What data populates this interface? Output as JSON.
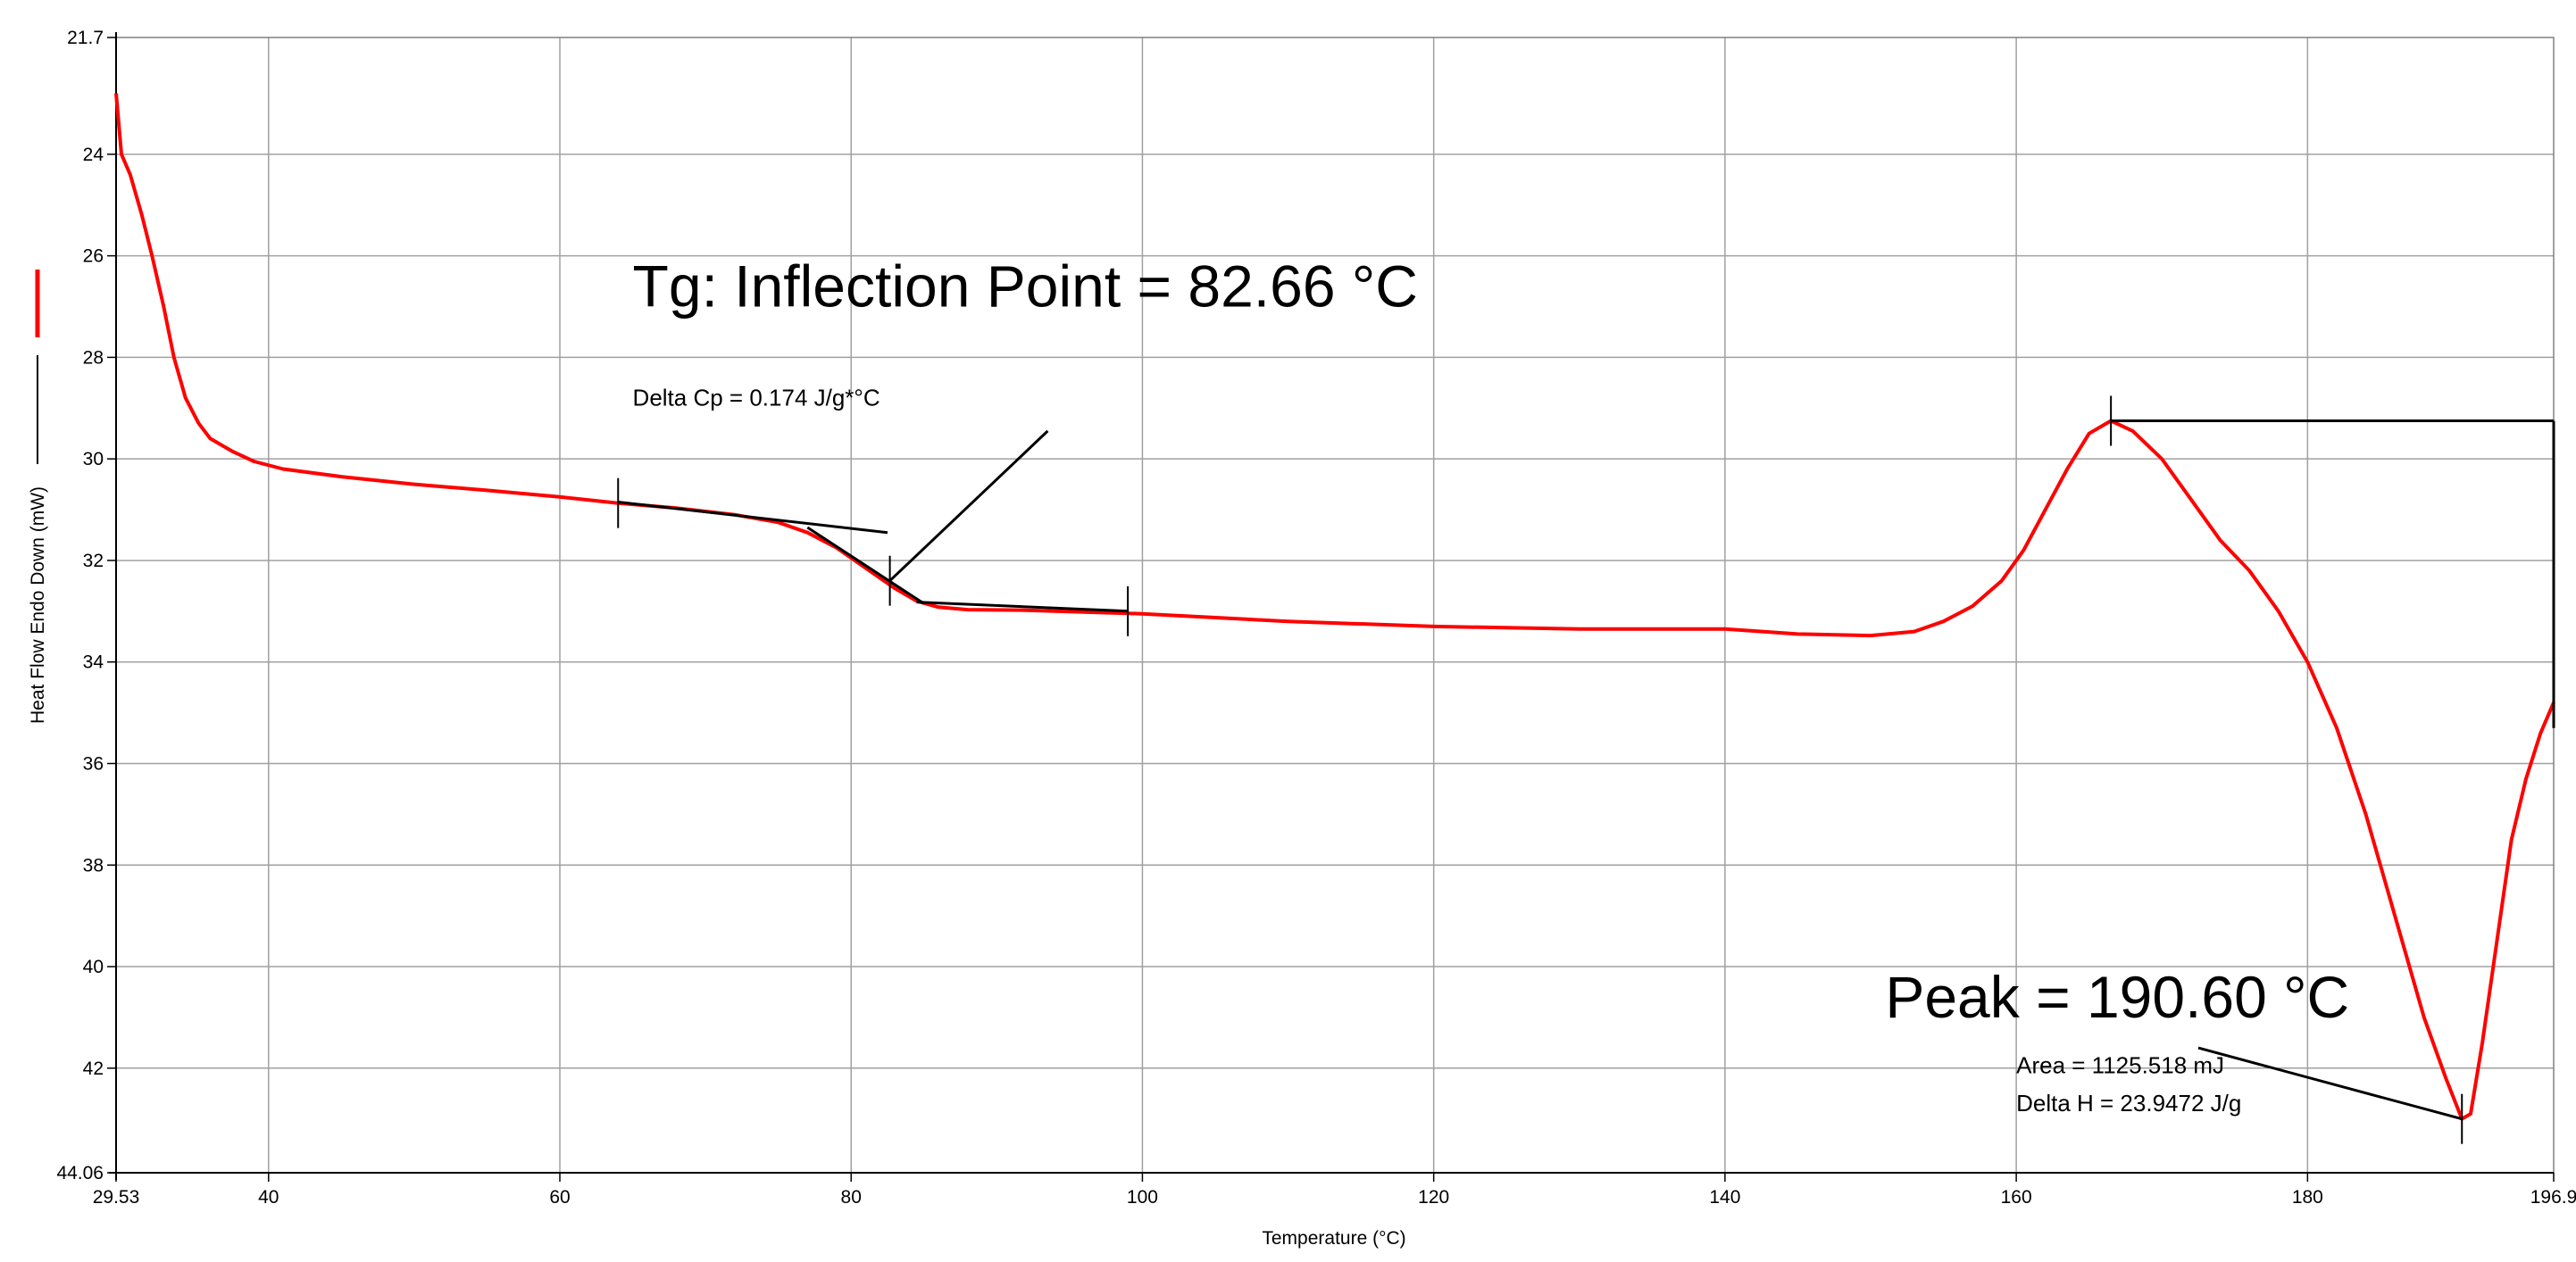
{
  "chart_data": {
    "type": "line",
    "title": "",
    "xlabel": "Temperature (°C)",
    "ylabel": "Heat Flow Endo Down (mW)",
    "xlim": [
      29.53,
      196.9
    ],
    "ylim": [
      21.7,
      44.06
    ],
    "y_inverted": true,
    "grid": true,
    "x_ticks": [
      40,
      60,
      80,
      100,
      120,
      140,
      160,
      180
    ],
    "x_tick_labels": [
      "29.53",
      "40",
      "60",
      "80",
      "100",
      "120",
      "140",
      "160",
      "180",
      "196.9"
    ],
    "y_ticks": [
      24,
      26,
      28,
      30,
      32,
      34,
      36,
      38,
      40,
      42
    ],
    "y_tick_labels": [
      "21.7",
      "24",
      "26",
      "28",
      "30",
      "32",
      "34",
      "36",
      "38",
      "40",
      "42",
      "44.06"
    ],
    "series": [
      {
        "name": "Heat Flow Endo Down",
        "color": "#ff0000",
        "points": [
          [
            29.53,
            22.8
          ],
          [
            29.9,
            24.0
          ],
          [
            30.5,
            24.4
          ],
          [
            31.3,
            25.2
          ],
          [
            32.0,
            26.0
          ],
          [
            32.8,
            27.0
          ],
          [
            33.5,
            28.0
          ],
          [
            34.3,
            28.8
          ],
          [
            35.2,
            29.3
          ],
          [
            36.0,
            29.6
          ],
          [
            37.5,
            29.85
          ],
          [
            39.0,
            30.05
          ],
          [
            41.0,
            30.2
          ],
          [
            45.0,
            30.35
          ],
          [
            50.0,
            30.5
          ],
          [
            55.0,
            30.62
          ],
          [
            60.0,
            30.75
          ],
          [
            64.0,
            30.87
          ],
          [
            68.0,
            30.97
          ],
          [
            72.0,
            31.1
          ],
          [
            75.0,
            31.25
          ],
          [
            77.0,
            31.45
          ],
          [
            79.0,
            31.75
          ],
          [
            81.0,
            32.15
          ],
          [
            83.0,
            32.55
          ],
          [
            84.5,
            32.8
          ],
          [
            86.0,
            32.92
          ],
          [
            88.0,
            32.97
          ],
          [
            92.0,
            32.98
          ],
          [
            100.0,
            33.05
          ],
          [
            110.0,
            33.2
          ],
          [
            120.0,
            33.3
          ],
          [
            130.0,
            33.35
          ],
          [
            140.0,
            33.35
          ],
          [
            145.0,
            33.45
          ],
          [
            150.0,
            33.48
          ],
          [
            153.0,
            33.4
          ],
          [
            155.0,
            33.2
          ],
          [
            157.0,
            32.9
          ],
          [
            159.0,
            32.4
          ],
          [
            160.5,
            31.8
          ],
          [
            162.0,
            31.0
          ],
          [
            163.5,
            30.2
          ],
          [
            165.0,
            29.5
          ],
          [
            166.5,
            29.25
          ],
          [
            168.0,
            29.45
          ],
          [
            170.0,
            30.0
          ],
          [
            172.0,
            30.8
          ],
          [
            174.0,
            31.6
          ],
          [
            176.0,
            32.2
          ],
          [
            178.0,
            33.0
          ],
          [
            180.0,
            34.0
          ],
          [
            182.0,
            35.3
          ],
          [
            184.0,
            37.0
          ],
          [
            186.0,
            39.0
          ],
          [
            188.0,
            41.0
          ],
          [
            189.5,
            42.2
          ],
          [
            190.6,
            43.0
          ],
          [
            191.2,
            42.9
          ],
          [
            192.0,
            41.5
          ],
          [
            193.0,
            39.5
          ],
          [
            194.0,
            37.5
          ],
          [
            195.0,
            36.3
          ],
          [
            196.0,
            35.4
          ],
          [
            196.9,
            34.8
          ]
        ]
      }
    ],
    "analysis_lines": [
      {
        "name": "glass-transition-tangent-onset",
        "points": [
          [
            64.0,
            30.85
          ],
          [
            82.5,
            31.45
          ]
        ]
      },
      {
        "name": "glass-transition-tangent-mid",
        "points": [
          [
            77.0,
            31.35
          ],
          [
            85.0,
            32.85
          ]
        ]
      },
      {
        "name": "glass-transition-tangent-end",
        "points": [
          [
            84.5,
            32.82
          ],
          [
            99.0,
            33.0
          ]
        ]
      },
      {
        "name": "tg-leader-line",
        "points": [
          [
            82.66,
            32.4
          ],
          [
            93.5,
            29.45
          ]
        ]
      },
      {
        "name": "peak-baseline-top",
        "points": [
          [
            166.5,
            29.25
          ],
          [
            196.9,
            29.25
          ]
        ]
      },
      {
        "name": "peak-baseline-right",
        "points": [
          [
            196.9,
            29.25
          ],
          [
            196.9,
            35.3
          ]
        ]
      },
      {
        "name": "peak-leader-line",
        "points": [
          [
            190.6,
            43.0
          ],
          [
            172.5,
            41.6
          ]
        ]
      }
    ],
    "markers": [
      {
        "name": "tg-onset-marker",
        "x": 64.0,
        "y": 30.87
      },
      {
        "name": "tg-inflection-marker",
        "x": 82.66,
        "y": 32.4
      },
      {
        "name": "tg-end-marker",
        "x": 99.0,
        "y": 33.0
      },
      {
        "name": "peak-start-marker",
        "x": 166.5,
        "y": 29.25
      },
      {
        "name": "peak-marker",
        "x": 190.6,
        "y": 43.0
      }
    ],
    "annotations": [
      {
        "name": "tg-inflection-label",
        "text": "Tg: Inflection Point = 82.66 °C",
        "at": [
          65.0,
          27.0
        ],
        "size": "big"
      },
      {
        "name": "delta-cp-label",
        "text": "Delta Cp = 0.174 J/g*°C",
        "at": [
          65.0,
          28.95
        ],
        "size": "small"
      },
      {
        "name": "peak-label",
        "text": "Peak = 190.60 °C",
        "at": [
          151.0,
          41.0
        ],
        "size": "big"
      },
      {
        "name": "area-label",
        "text": "Area = 1125.518 mJ",
        "at": [
          160.0,
          42.1
        ],
        "size": "small"
      },
      {
        "name": "delta-h-label",
        "text": "Delta H = 23.9472 J/g",
        "at": [
          160.0,
          42.85
        ],
        "size": "small"
      }
    ]
  }
}
